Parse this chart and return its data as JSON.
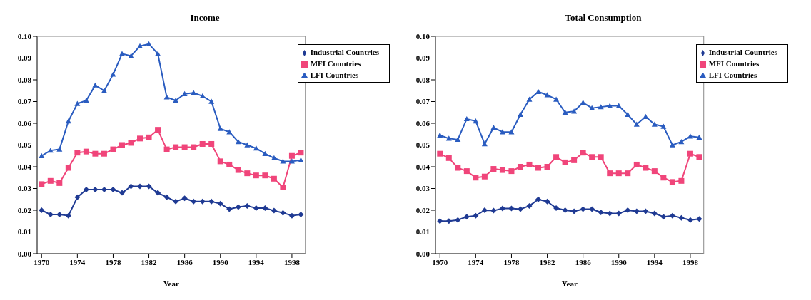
{
  "chart_data": [
    {
      "type": "line",
      "title": "Income",
      "xlabel": "Year",
      "x": [
        1970,
        1971,
        1972,
        1973,
        1974,
        1975,
        1976,
        1977,
        1978,
        1979,
        1980,
        1981,
        1982,
        1983,
        1984,
        1985,
        1986,
        1987,
        1988,
        1989,
        1990,
        1991,
        1992,
        1993,
        1994,
        1995,
        1996,
        1997,
        1998,
        1999
      ],
      "xlim": [
        1969.5,
        1999.5
      ],
      "xticks": [
        1970,
        1974,
        1978,
        1982,
        1986,
        1990,
        1994,
        1998
      ],
      "ylim": [
        0,
        0.1
      ],
      "yticks": [
        {
          "value": 0,
          "label": "0.00"
        },
        {
          "value": 0.01,
          "label": "0.01"
        },
        {
          "value": 0.02,
          "label": "0.02"
        },
        {
          "value": 0.03,
          "label": "0.03"
        },
        {
          "value": 0.04,
          "label": "0.04"
        },
        {
          "value": 0.05,
          "label": "0.05"
        },
        {
          "value": 0.06,
          "label": "0.06"
        },
        {
          "value": 0.07,
          "label": "0.07"
        },
        {
          "value": 0.08,
          "label": "0.08"
        },
        {
          "value": 0.09,
          "label": "0.09"
        },
        {
          "value": 0.1,
          "label": "0.10"
        }
      ],
      "grid": false,
      "legend": "top right",
      "line_style": "solid",
      "series": [
        {
          "name": "Industrial Countries",
          "color": "#1f3a93",
          "marker": "diamond",
          "values": [
            0.02,
            0.018,
            0.018,
            0.0175,
            0.026,
            0.0295,
            0.0295,
            0.0295,
            0.0295,
            0.028,
            0.031,
            0.031,
            0.031,
            0.028,
            0.026,
            0.024,
            0.0255,
            0.024,
            0.024,
            0.024,
            0.023,
            0.0205,
            0.0215,
            0.022,
            0.021,
            0.021,
            0.0198,
            0.0188,
            0.0175,
            0.018
          ]
        },
        {
          "name": "MFI Countries",
          "color": "#f0457a",
          "marker": "square",
          "values": [
            0.032,
            0.0335,
            0.0325,
            0.0395,
            0.0465,
            0.047,
            0.046,
            0.046,
            0.048,
            0.05,
            0.051,
            0.053,
            0.0535,
            0.057,
            0.048,
            0.049,
            0.049,
            0.049,
            0.0505,
            0.0505,
            0.0425,
            0.041,
            0.0385,
            0.037,
            0.036,
            0.036,
            0.0345,
            0.0305,
            0.045,
            0.0465
          ]
        },
        {
          "name": "LFI Countries",
          "color": "#2a5cc0",
          "marker": "triangle",
          "values": [
            0.045,
            0.0475,
            0.048,
            0.061,
            0.069,
            0.0705,
            0.0775,
            0.075,
            0.0825,
            0.092,
            0.091,
            0.0955,
            0.0965,
            0.092,
            0.072,
            0.0705,
            0.0735,
            0.074,
            0.0725,
            0.07,
            0.0575,
            0.056,
            0.0515,
            0.05,
            0.0485,
            0.046,
            0.044,
            0.0425,
            0.0425,
            0.043
          ]
        }
      ]
    },
    {
      "type": "line",
      "title": "Total Consumption",
      "xlabel": "Year",
      "x": [
        1970,
        1971,
        1972,
        1973,
        1974,
        1975,
        1976,
        1977,
        1978,
        1979,
        1980,
        1981,
        1982,
        1983,
        1984,
        1985,
        1986,
        1987,
        1988,
        1989,
        1990,
        1991,
        1992,
        1993,
        1994,
        1995,
        1996,
        1997,
        1998,
        1999
      ],
      "xlim": [
        1969.5,
        1999.5
      ],
      "xticks": [
        1970,
        1974,
        1978,
        1982,
        1986,
        1990,
        1994,
        1998
      ],
      "ylim": [
        0,
        0.1
      ],
      "yticks": [
        {
          "value": 0,
          "label": "0.00"
        },
        {
          "value": 0.01,
          "label": "0.01"
        },
        {
          "value": 0.02,
          "label": "0.02"
        },
        {
          "value": 0.03,
          "label": "0.03"
        },
        {
          "value": 0.04,
          "label": "0.04"
        },
        {
          "value": 0.05,
          "label": "0.05"
        },
        {
          "value": 0.06,
          "label": "0.06"
        },
        {
          "value": 0.07,
          "label": "0.07"
        },
        {
          "value": 0.08,
          "label": "0.08"
        },
        {
          "value": 0.09,
          "label": "0.09"
        },
        {
          "value": 0.1,
          "label": "0.10"
        }
      ],
      "grid": false,
      "legend": "top right",
      "line_style": "solid",
      "series": [
        {
          "name": "Industrial Countries",
          "color": "#1f3a93",
          "marker": "diamond",
          "values": [
            0.015,
            0.015,
            0.0155,
            0.017,
            0.0175,
            0.02,
            0.0198,
            0.0208,
            0.0208,
            0.0205,
            0.022,
            0.025,
            0.024,
            0.021,
            0.02,
            0.0195,
            0.0205,
            0.0205,
            0.019,
            0.0185,
            0.0185,
            0.02,
            0.0195,
            0.0195,
            0.0185,
            0.017,
            0.0175,
            0.0165,
            0.0155,
            0.016
          ]
        },
        {
          "name": "MFI Countries",
          "color": "#f0457a",
          "marker": "square",
          "values": [
            0.046,
            0.044,
            0.0395,
            0.038,
            0.035,
            0.0355,
            0.039,
            0.0385,
            0.038,
            0.04,
            0.041,
            0.0395,
            0.04,
            0.0445,
            0.042,
            0.043,
            0.0465,
            0.0445,
            0.0445,
            0.037,
            0.037,
            0.037,
            0.041,
            0.0395,
            0.038,
            0.035,
            0.033,
            0.0335,
            0.046,
            0.0445
          ]
        },
        {
          "name": "LFI Countries",
          "color": "#2a5cc0",
          "marker": "triangle",
          "values": [
            0.0545,
            0.053,
            0.0525,
            0.062,
            0.061,
            0.0505,
            0.058,
            0.056,
            0.056,
            0.064,
            0.071,
            0.0745,
            0.073,
            0.071,
            0.065,
            0.0655,
            0.0695,
            0.067,
            0.0675,
            0.068,
            0.068,
            0.064,
            0.0595,
            0.063,
            0.0595,
            0.0585,
            0.05,
            0.0515,
            0.054,
            0.0535
          ]
        }
      ]
    }
  ]
}
